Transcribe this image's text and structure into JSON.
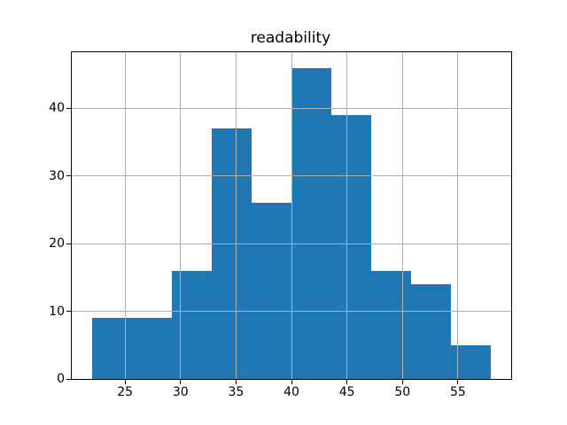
{
  "chart_data": {
    "type": "bar",
    "subtype": "histogram",
    "title": "readability",
    "xlabel": "",
    "ylabel": "",
    "bin_edges": [
      22.0,
      25.6,
      29.2,
      32.8,
      36.4,
      40.0,
      43.6,
      47.2,
      50.8,
      54.4,
      58.0
    ],
    "values": [
      9,
      9,
      16,
      37,
      26,
      46,
      39,
      16,
      14,
      5
    ],
    "xticks": [
      25,
      30,
      35,
      40,
      45,
      50,
      55
    ],
    "yticks": [
      0,
      10,
      20,
      30,
      40
    ],
    "xlim": [
      20.2,
      59.8
    ],
    "ylim": [
      0,
      48.3
    ],
    "grid": true,
    "legend": false,
    "bar_color": "#1f77b4",
    "grid_color": "#b0b0b0",
    "spine_color": "#000000",
    "background_color": "#ffffff"
  }
}
